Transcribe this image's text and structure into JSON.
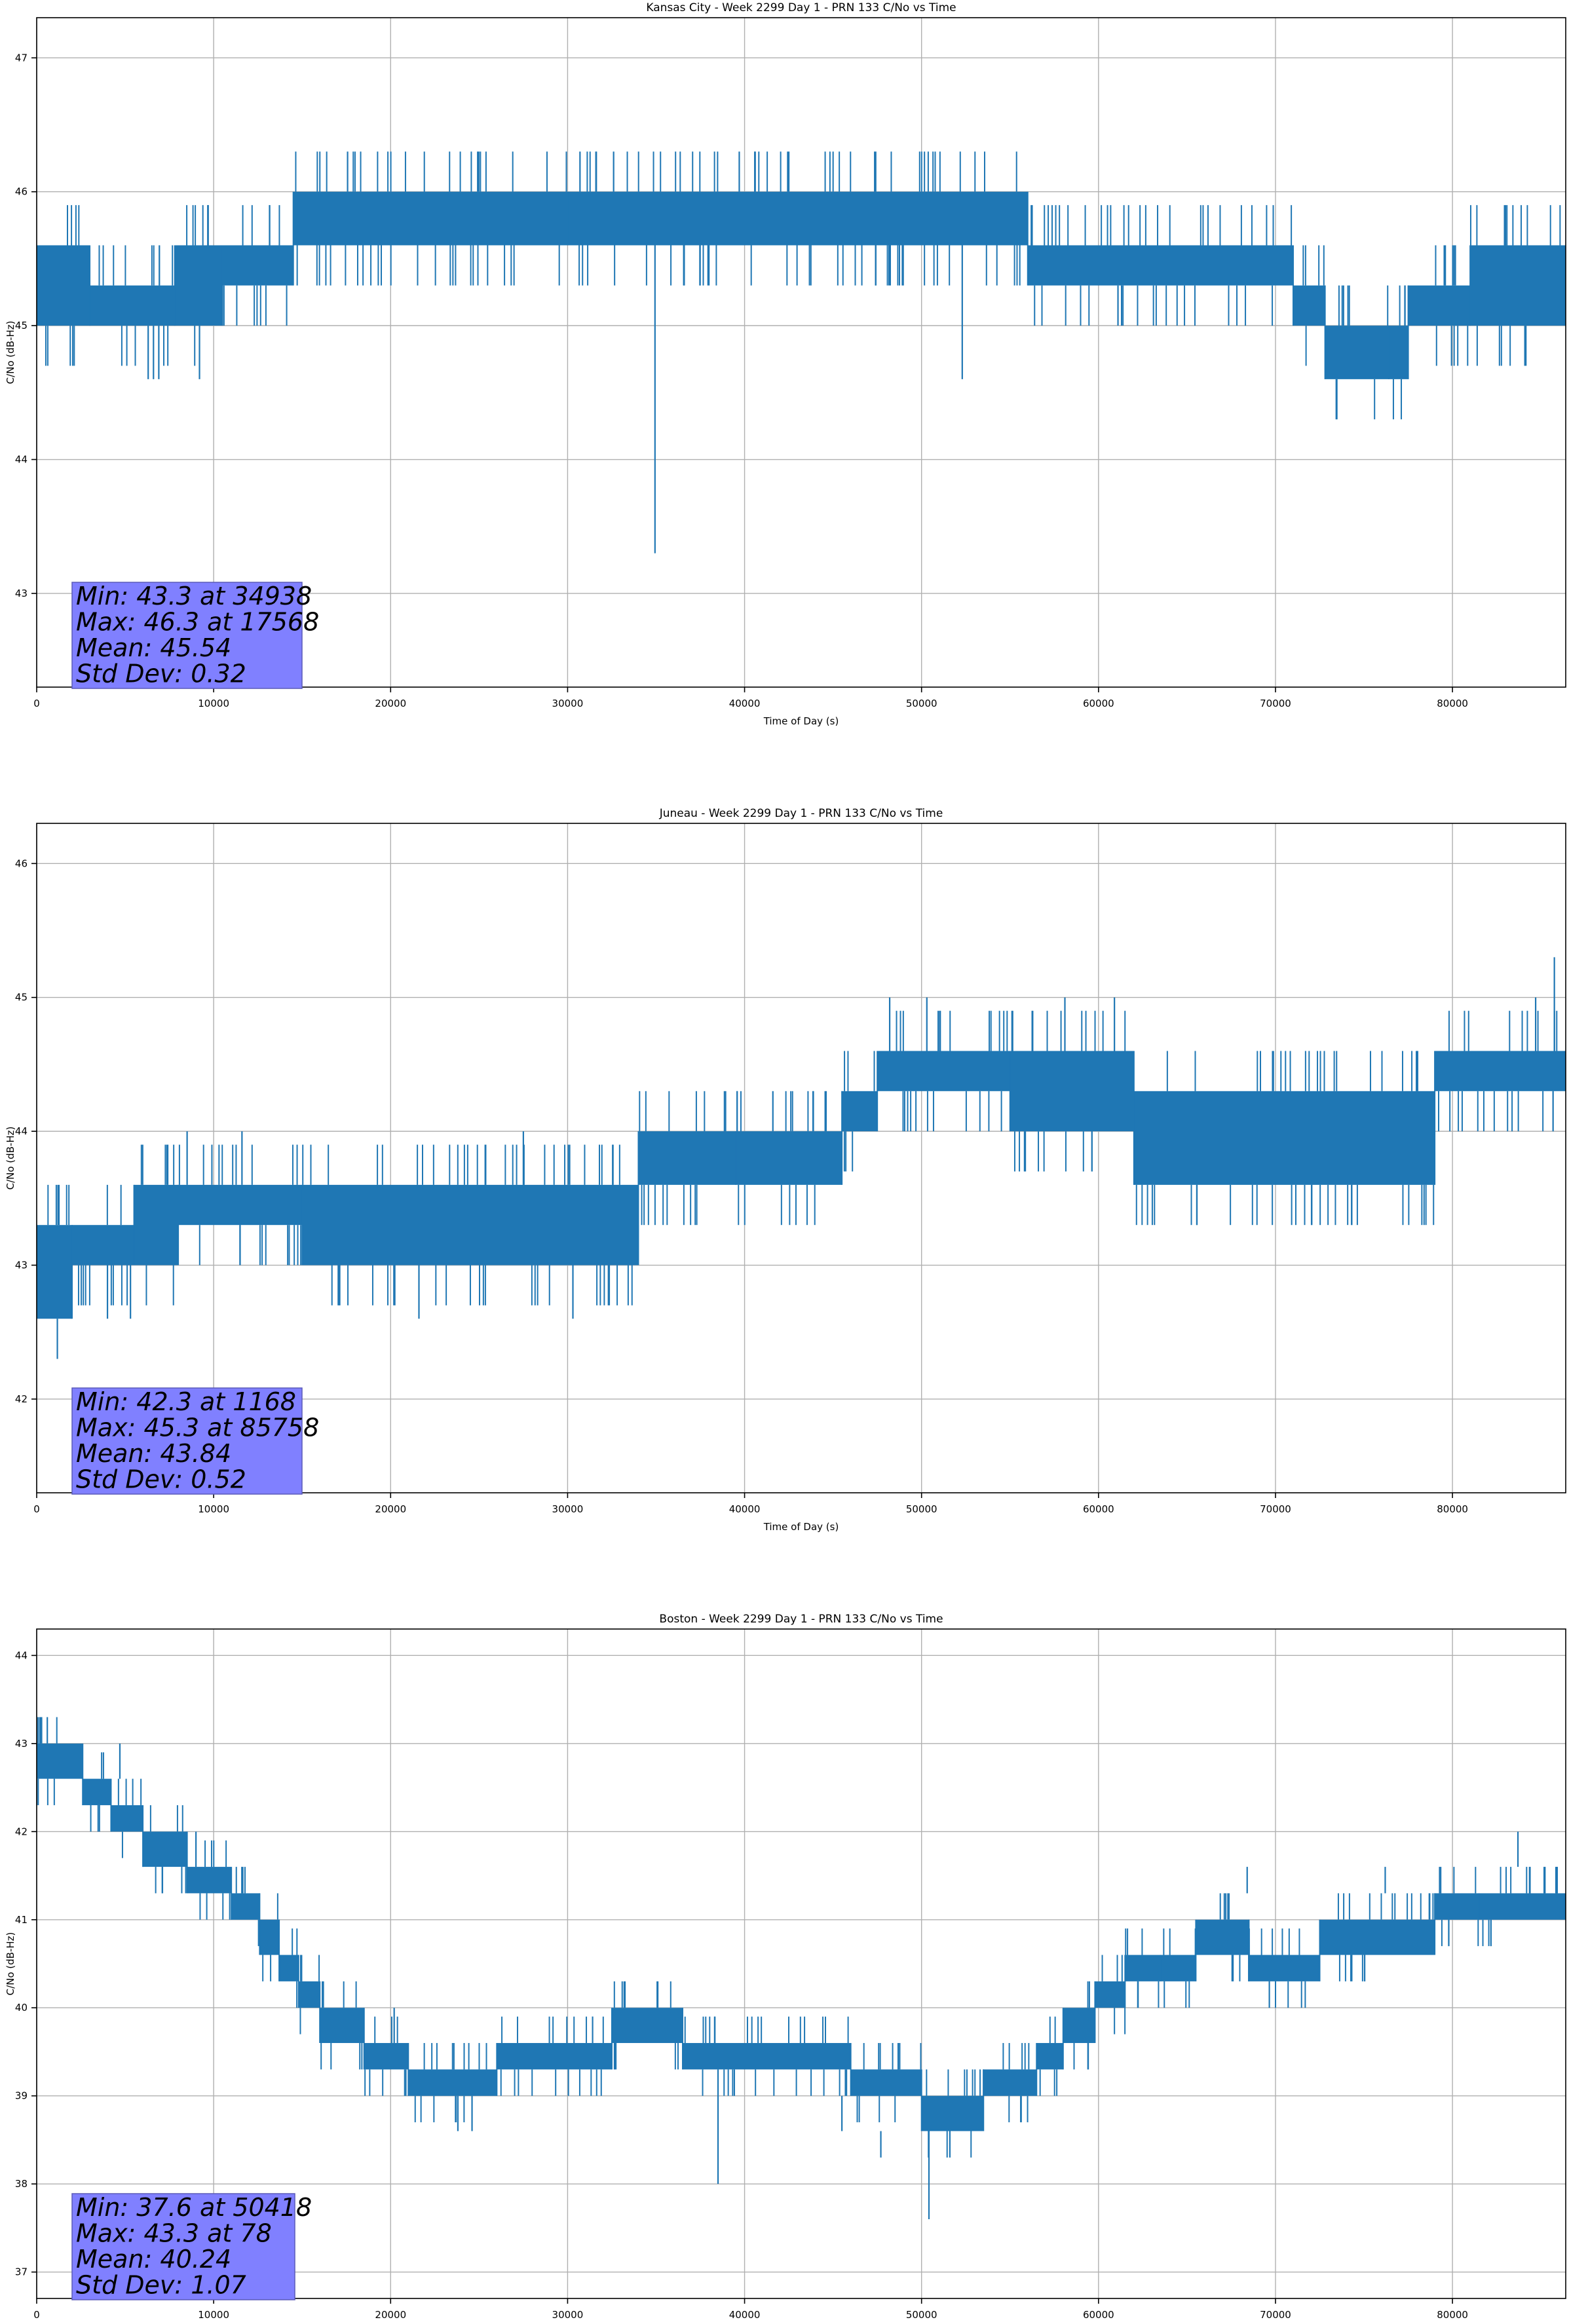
{
  "chart_data": [
    {
      "type": "line",
      "title": "Kansas City - Week 2299 Day 1 - PRN 133 C/No vs Time",
      "xlabel": "Time of Day (s)",
      "ylabel": "C/No (dB-Hz)",
      "xlim": [
        0,
        86400
      ],
      "ylim": [
        42.3,
        47.3
      ],
      "xticks": [
        0,
        10000,
        20000,
        30000,
        40000,
        50000,
        60000,
        70000,
        80000
      ],
      "yticks": [
        43,
        44,
        45,
        46,
        47
      ],
      "grid": true,
      "series_color": "#1f77b4",
      "stats_box": {
        "min": "Min: 43.3 at 34938",
        "max": "Max: 46.3 at 17568",
        "mean": "Mean: 45.54",
        "std": "Std Dev: 0.32"
      },
      "series": [
        {
          "segments": [
            {
              "x": [
                0,
                3000
              ],
              "lo": 45.0,
              "hi": 45.6
            },
            {
              "x": [
                3000,
                7800
              ],
              "lo": 45.0,
              "hi": 45.3
            },
            {
              "x": [
                7800,
                10500
              ],
              "lo": 45.0,
              "hi": 45.6
            },
            {
              "x": [
                10500,
                14500
              ],
              "lo": 45.3,
              "hi": 45.6
            },
            {
              "x": [
                14500,
                30000
              ],
              "lo": 45.6,
              "hi": 46.0
            },
            {
              "x": [
                30000,
                56000
              ],
              "lo": 45.6,
              "hi": 46.0
            },
            {
              "x": [
                56000,
                71000
              ],
              "lo": 45.3,
              "hi": 45.6
            },
            {
              "x": [
                71000,
                72800
              ],
              "lo": 45.0,
              "hi": 45.3
            },
            {
              "x": [
                72800,
                77500
              ],
              "lo": 44.6,
              "hi": 45.0
            },
            {
              "x": [
                77500,
                81000
              ],
              "lo": 45.0,
              "hi": 45.3
            },
            {
              "x": [
                81000,
                86400
              ],
              "lo": 45.0,
              "hi": 45.6
            }
          ],
          "spikes": [
            {
              "x": 6300,
              "lo": 44.6,
              "hi": 45.0
            },
            {
              "x": 6600,
              "lo": 44.6,
              "hi": 45.0
            },
            {
              "x": 6900,
              "lo": 44.6,
              "hi": 45.0
            },
            {
              "x": 9200,
              "lo": 44.6,
              "hi": 45.0
            },
            {
              "x": 17568,
              "lo": 46.0,
              "hi": 46.3
            },
            {
              "x": 30700,
              "lo": 46.0,
              "hi": 46.3
            },
            {
              "x": 31600,
              "lo": 46.0,
              "hi": 46.3
            },
            {
              "x": 32600,
              "lo": 46.0,
              "hi": 46.3
            },
            {
              "x": 34938,
              "lo": 43.3,
              "hi": 45.6
            },
            {
              "x": 39700,
              "lo": 46.0,
              "hi": 46.3
            },
            {
              "x": 40600,
              "lo": 46.0,
              "hi": 46.3
            },
            {
              "x": 42500,
              "lo": 46.0,
              "hi": 46.3
            },
            {
              "x": 52300,
              "lo": 44.6,
              "hi": 45.6
            },
            {
              "x": 61100,
              "lo": 45.0,
              "hi": 45.3
            },
            {
              "x": 76400,
              "lo": 44.6,
              "hi": 45.0
            }
          ]
        }
      ]
    },
    {
      "type": "line",
      "title": "Juneau - Week 2299 Day 1 - PRN 133 C/No vs Time",
      "xlabel": "Time of Day (s)",
      "ylabel": "C/No (dB-Hz)",
      "xlim": [
        0,
        86400
      ],
      "ylim": [
        41.3,
        46.3
      ],
      "xticks": [
        0,
        10000,
        20000,
        30000,
        40000,
        50000,
        60000,
        70000,
        80000
      ],
      "yticks": [
        42,
        43,
        44,
        45,
        46
      ],
      "grid": true,
      "series_color": "#1f77b4",
      "stats_box": {
        "min": "Min: 42.3 at 1168",
        "max": "Max: 45.3 at 85758",
        "mean": "Mean: 43.84",
        "std": "Std Dev: 0.52"
      },
      "series": [
        {
          "segments": [
            {
              "x": [
                0,
                2000
              ],
              "lo": 42.6,
              "hi": 43.3
            },
            {
              "x": [
                2000,
                5500
              ],
              "lo": 43.0,
              "hi": 43.3
            },
            {
              "x": [
                5500,
                8000
              ],
              "lo": 43.0,
              "hi": 43.6
            },
            {
              "x": [
                8000,
                15000
              ],
              "lo": 43.3,
              "hi": 43.6
            },
            {
              "x": [
                15000,
                34000
              ],
              "lo": 43.0,
              "hi": 43.6
            },
            {
              "x": [
                34000,
                39500
              ],
              "lo": 43.6,
              "hi": 44.0
            },
            {
              "x": [
                39500,
                45500
              ],
              "lo": 43.6,
              "hi": 44.0
            },
            {
              "x": [
                45500,
                47500
              ],
              "lo": 44.0,
              "hi": 44.3
            },
            {
              "x": [
                47500,
                55000
              ],
              "lo": 44.3,
              "hi": 44.6
            },
            {
              "x": [
                55000,
                62000
              ],
              "lo": 44.0,
              "hi": 44.6
            },
            {
              "x": [
                62000,
                79000
              ],
              "lo": 43.6,
              "hi": 44.3
            },
            {
              "x": [
                79000,
                86400
              ],
              "lo": 44.3,
              "hi": 44.6
            }
          ],
          "spikes": [
            {
              "x": 1168,
              "lo": 42.3,
              "hi": 42.6
            },
            {
              "x": 4000,
              "lo": 42.6,
              "hi": 43.0
            },
            {
              "x": 5300,
              "lo": 42.6,
              "hi": 43.0
            },
            {
              "x": 8500,
              "lo": 43.6,
              "hi": 44.0
            },
            {
              "x": 11600,
              "lo": 43.6,
              "hi": 44.0
            },
            {
              "x": 21600,
              "lo": 42.6,
              "hi": 43.0
            },
            {
              "x": 27500,
              "lo": 43.6,
              "hi": 44.0
            },
            {
              "x": 30300,
              "lo": 42.6,
              "hi": 43.0
            },
            {
              "x": 41600,
              "lo": 44.0,
              "hi": 44.3
            },
            {
              "x": 48200,
              "lo": 44.6,
              "hi": 45.0
            },
            {
              "x": 50300,
              "lo": 44.6,
              "hi": 45.0
            },
            {
              "x": 58100,
              "lo": 44.6,
              "hi": 45.0
            },
            {
              "x": 60900,
              "lo": 44.6,
              "hi": 45.0
            },
            {
              "x": 74300,
              "lo": 43.3,
              "hi": 43.6
            },
            {
              "x": 84700,
              "lo": 44.6,
              "hi": 45.0
            },
            {
              "x": 85758,
              "lo": 44.6,
              "hi": 45.3
            }
          ]
        }
      ]
    },
    {
      "type": "line",
      "title": "Boston - Week 2299 Day 1 - PRN 133 C/No vs Time",
      "xlabel": "Time of Day (s)",
      "ylabel": "C/No (dB-Hz)",
      "xlim": [
        0,
        86400
      ],
      "ylim": [
        36.7,
        44.3
      ],
      "xticks": [
        0,
        10000,
        20000,
        30000,
        40000,
        50000,
        60000,
        70000,
        80000
      ],
      "yticks": [
        37,
        38,
        39,
        40,
        41,
        42,
        43,
        44
      ],
      "grid": true,
      "series_color": "#1f77b4",
      "stats_box": {
        "min": "Min: 37.6 at 50418",
        "max": "Max: 43.3 at 78",
        "mean": "Mean: 40.24",
        "std": "Std Dev: 1.07"
      },
      "series": [
        {
          "segments": [
            {
              "x": [
                0,
                2600
              ],
              "lo": 42.6,
              "hi": 43.0
            },
            {
              "x": [
                2600,
                4200
              ],
              "lo": 42.3,
              "hi": 42.6
            },
            {
              "x": [
                4200,
                6000
              ],
              "lo": 42.0,
              "hi": 42.3
            },
            {
              "x": [
                6000,
                8500
              ],
              "lo": 41.6,
              "hi": 42.0
            },
            {
              "x": [
                8500,
                11000
              ],
              "lo": 41.3,
              "hi": 41.6
            },
            {
              "x": [
                11000,
                12600
              ],
              "lo": 41.0,
              "hi": 41.3
            },
            {
              "x": [
                12600,
                13700
              ],
              "lo": 40.6,
              "hi": 41.0
            },
            {
              "x": [
                13700,
                14800
              ],
              "lo": 40.3,
              "hi": 40.6
            },
            {
              "x": [
                14800,
                16000
              ],
              "lo": 40.0,
              "hi": 40.3
            },
            {
              "x": [
                16000,
                18500
              ],
              "lo": 39.6,
              "hi": 40.0
            },
            {
              "x": [
                18500,
                21000
              ],
              "lo": 39.3,
              "hi": 39.6
            },
            {
              "x": [
                21000,
                26000
              ],
              "lo": 39.0,
              "hi": 39.3
            },
            {
              "x": [
                26000,
                32500
              ],
              "lo": 39.3,
              "hi": 39.6
            },
            {
              "x": [
                32500,
                36500
              ],
              "lo": 39.6,
              "hi": 40.0
            },
            {
              "x": [
                36500,
                46000
              ],
              "lo": 39.3,
              "hi": 39.6
            },
            {
              "x": [
                46000,
                50000
              ],
              "lo": 39.0,
              "hi": 39.3
            },
            {
              "x": [
                50000,
                53500
              ],
              "lo": 38.6,
              "hi": 39.0
            },
            {
              "x": [
                53500,
                56500
              ],
              "lo": 39.0,
              "hi": 39.3
            },
            {
              "x": [
                56500,
                58000
              ],
              "lo": 39.3,
              "hi": 39.6
            },
            {
              "x": [
                58000,
                59800
              ],
              "lo": 39.6,
              "hi": 40.0
            },
            {
              "x": [
                59800,
                61500
              ],
              "lo": 40.0,
              "hi": 40.3
            },
            {
              "x": [
                61500,
                63500
              ],
              "lo": 40.3,
              "hi": 40.6
            },
            {
              "x": [
                63500,
                65500
              ],
              "lo": 40.3,
              "hi": 40.6
            },
            {
              "x": [
                65500,
                68500
              ],
              "lo": 40.6,
              "hi": 41.0
            },
            {
              "x": [
                68500,
                72500
              ],
              "lo": 40.3,
              "hi": 40.6
            },
            {
              "x": [
                72500,
                79000
              ],
              "lo": 40.6,
              "hi": 41.0
            },
            {
              "x": [
                79000,
                81500
              ],
              "lo": 41.0,
              "hi": 41.3
            },
            {
              "x": [
                81500,
                86400
              ],
              "lo": 41.0,
              "hi": 41.3
            }
          ],
          "spikes": [
            {
              "x": 78,
              "lo": 43.0,
              "hi": 43.3
            },
            {
              "x": 600,
              "lo": 43.0,
              "hi": 43.3
            },
            {
              "x": 4700,
              "lo": 42.6,
              "hi": 43.0
            },
            {
              "x": 9000,
              "lo": 41.6,
              "hi": 42.0
            },
            {
              "x": 20200,
              "lo": 39.6,
              "hi": 40.0
            },
            {
              "x": 23800,
              "lo": 38.6,
              "hi": 39.0
            },
            {
              "x": 24600,
              "lo": 38.6,
              "hi": 39.0
            },
            {
              "x": 38500,
              "lo": 38.0,
              "hi": 39.3
            },
            {
              "x": 45500,
              "lo": 38.6,
              "hi": 39.0
            },
            {
              "x": 47700,
              "lo": 38.3,
              "hi": 38.6
            },
            {
              "x": 50418,
              "lo": 37.6,
              "hi": 38.6
            },
            {
              "x": 51600,
              "lo": 38.3,
              "hi": 38.6
            },
            {
              "x": 68400,
              "lo": 41.3,
              "hi": 41.6
            },
            {
              "x": 76200,
              "lo": 41.3,
              "hi": 41.6
            },
            {
              "x": 83700,
              "lo": 41.6,
              "hi": 42.0
            }
          ]
        }
      ]
    }
  ]
}
